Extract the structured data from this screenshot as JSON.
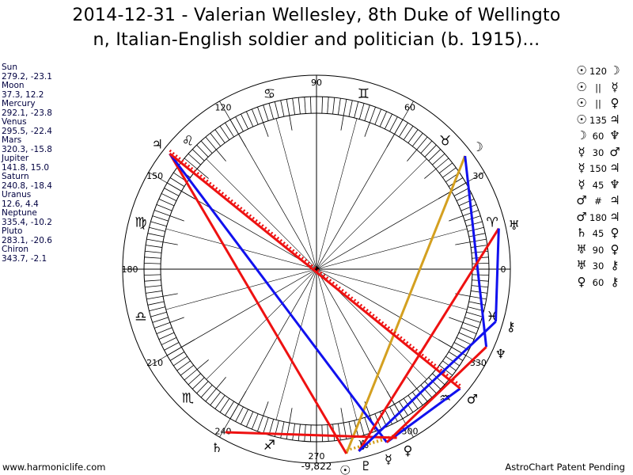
{
  "title": "2014-12-31 - Valerian Wellesley, 8th Duke of Wellingto\nn, Italian-English soldier and politician (b. 1915)...",
  "title_lines": [
    "2014-12-31 - Valerian Wellesley, 8th Duke of Wellingto",
    "n, Italian-English soldier and politician (b. 1915)..."
  ],
  "planets": [
    {
      "name": "Sun",
      "glyph": "☉",
      "pos": "279.2, -23.1",
      "lon": 279.2
    },
    {
      "name": "Moon",
      "glyph": "☽",
      "pos": "37.3, 12.2",
      "lon": 37.3
    },
    {
      "name": "Mercury",
      "glyph": "☿",
      "pos": "292.1, -23.8",
      "lon": 292.1
    },
    {
      "name": "Venus",
      "glyph": "♀",
      "pos": "295.5, -22.4",
      "lon": 295.5
    },
    {
      "name": "Mars",
      "glyph": "♂",
      "pos": "320.3, -15.8",
      "lon": 320.3
    },
    {
      "name": "Jupiter",
      "glyph": "♃",
      "pos": "141.8, 15.0",
      "lon": 141.8
    },
    {
      "name": "Saturn",
      "glyph": "♄",
      "pos": "240.8, -18.4",
      "lon": 240.8
    },
    {
      "name": "Uranus",
      "glyph": "♅",
      "pos": "12.6, 4.4",
      "lon": 12.6
    },
    {
      "name": "Neptune",
      "glyph": "♆",
      "pos": "335.4, -10.2",
      "lon": 335.4
    },
    {
      "name": "Pluto",
      "glyph": "♇",
      "pos": "283.1, -20.6",
      "lon": 283.1
    },
    {
      "name": "Chiron",
      "glyph": "⚷",
      "pos": "343.7, -2.1",
      "lon": 343.7
    }
  ],
  "aspects": [
    {
      "a": "☉",
      "type": "120",
      "b": "☽",
      "p1": 0,
      "p2": 1,
      "color": "#d4a020",
      "style": "solid"
    },
    {
      "a": "☉",
      "type": "||",
      "b": "☿",
      "p1": 0,
      "p2": 2,
      "color": "#d4a020",
      "style": "dotted"
    },
    {
      "a": "☉",
      "type": "||",
      "b": "♀",
      "p1": 0,
      "p2": 3,
      "color": "#d4a020",
      "style": "dotted"
    },
    {
      "a": "☉",
      "type": "135",
      "b": "♃",
      "p1": 0,
      "p2": 5,
      "color": "#ee1111",
      "style": "solid"
    },
    {
      "a": "☽",
      "type": "60",
      "b": "♆",
      "p1": 1,
      "p2": 8,
      "color": "#1111ee",
      "style": "solid"
    },
    {
      "a": "☿",
      "type": "30",
      "b": "♂",
      "p1": 2,
      "p2": 4,
      "color": "#1111ee",
      "style": "solid"
    },
    {
      "a": "☿",
      "type": "150",
      "b": "♃",
      "p1": 2,
      "p2": 5,
      "color": "#1111ee",
      "style": "solid"
    },
    {
      "a": "☿",
      "type": "45",
      "b": "♆",
      "p1": 2,
      "p2": 8,
      "color": "#ee1111",
      "style": "solid"
    },
    {
      "a": "♂",
      "type": "#",
      "b": "♃",
      "p1": 4,
      "p2": 5,
      "color": "#ee1111",
      "style": "dotted"
    },
    {
      "a": "♂",
      "type": "180",
      "b": "♃",
      "p1": 4,
      "p2": 5,
      "color": "#ee1111",
      "style": "solid"
    },
    {
      "a": "♄",
      "type": "45",
      "b": "♀",
      "p1": 6,
      "p2": 3,
      "color": "#ee1111",
      "style": "solid"
    },
    {
      "a": "♅",
      "type": "90",
      "b": "♀",
      "p1": 7,
      "p2": 9,
      "color": "#ee1111",
      "style": "solid"
    },
    {
      "a": "♅",
      "type": "30",
      "b": "⚷",
      "p1": 7,
      "p2": 10,
      "color": "#1111ee",
      "style": "solid"
    },
    {
      "a": "♀",
      "type": "60",
      "b": "⚷",
      "p1": 9,
      "p2": 10,
      "color": "#1111ee",
      "style": "solid"
    }
  ],
  "signs": [
    "♈",
    "♉",
    "♊",
    "♋",
    "♌",
    "♍",
    "♎",
    "♏",
    "♐",
    "♑",
    "♒",
    "♓"
  ],
  "degree_labels": [
    "0",
    "30",
    "60",
    "90",
    "120",
    "150",
    "180",
    "210",
    "240",
    "270",
    "300",
    "330"
  ],
  "bottom_value": "-9,822",
  "footer": {
    "left": "www.harmoniclife.com",
    "right": "AstroChart Patent Pending"
  }
}
